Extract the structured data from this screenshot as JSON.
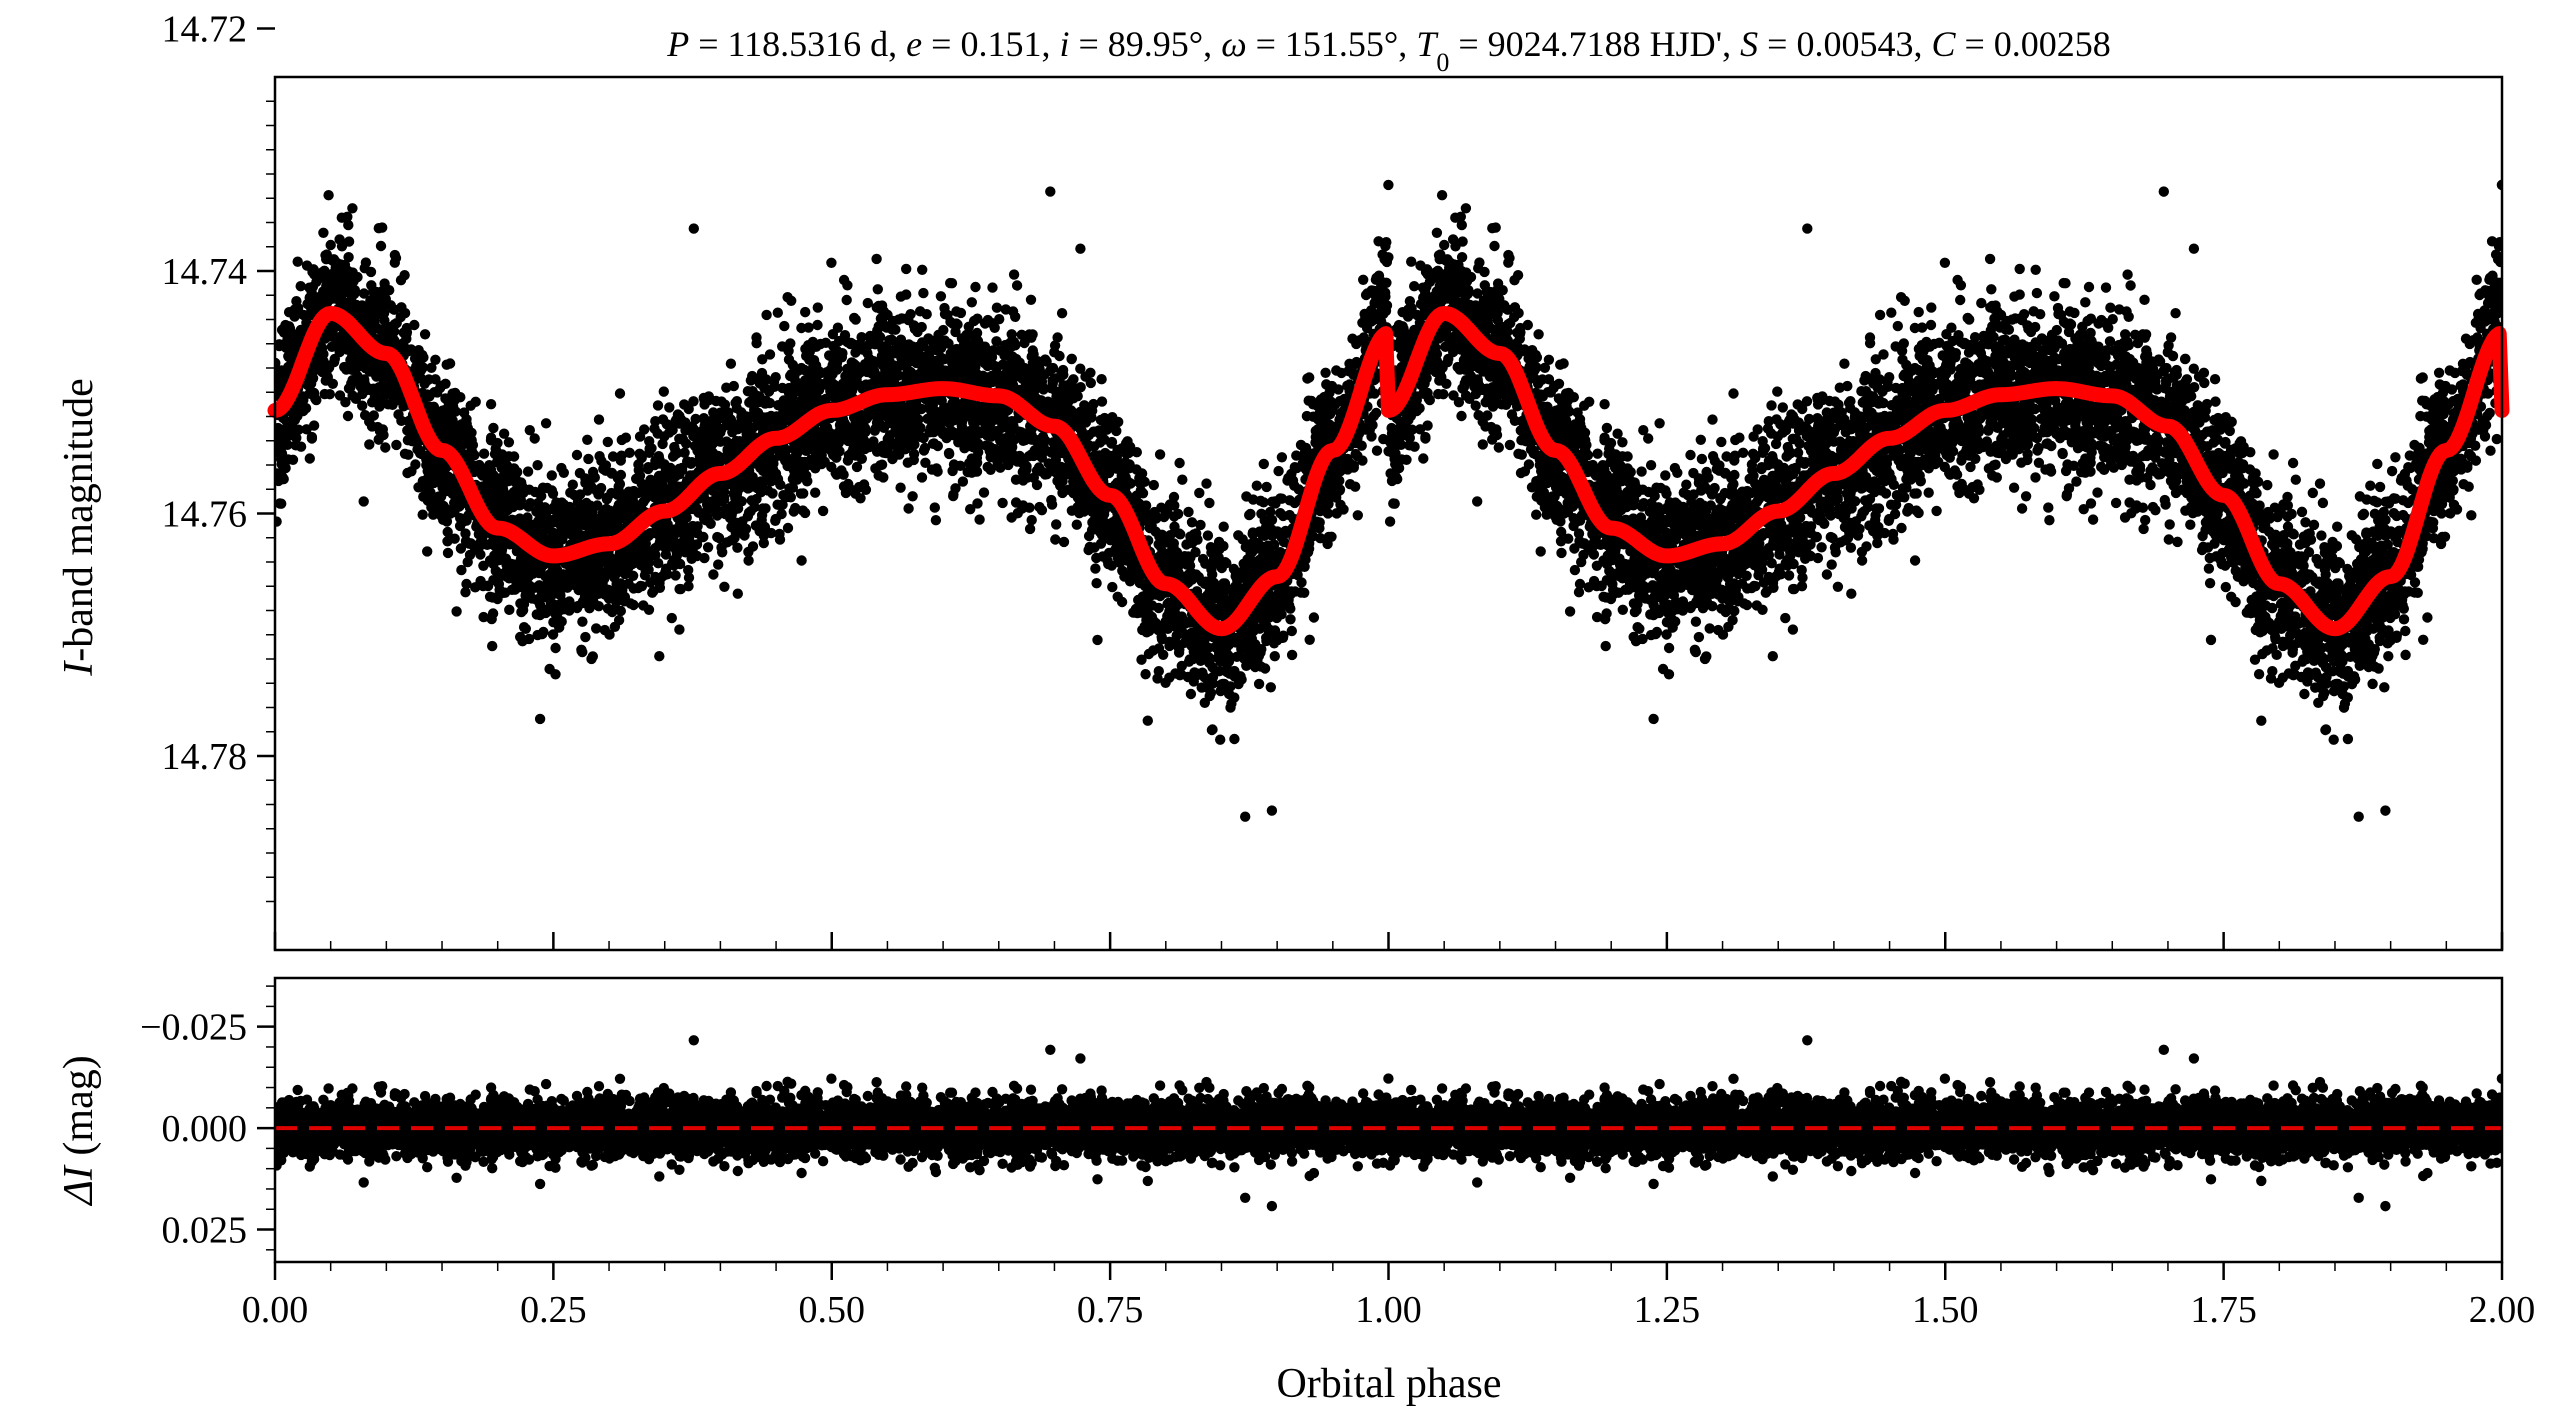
{
  "chart_data": [
    {
      "type": "scatter",
      "panel": "light-curve",
      "title": "P = 118.5316 d, e = 0.151, i = 89.95°, ω = 151.55°, T0 = 9024.7188 HJD', S = 0.00543, C = 0.00258",
      "title_parts": {
        "P_sym": "P",
        "P_val": " = 118.5316 d, ",
        "e_sym": "e",
        "e_val": " = 0.151, ",
        "i_sym": "i",
        "i_val": " = 89.95°, ",
        "w_sym": "ω",
        "w_val": " = 151.55°, ",
        "T_sym": "T",
        "T_sub": "0",
        "T_val": " = 9024.7188 HJD', ",
        "S_sym": "S",
        "S_val": " = 0.00543, ",
        "C_sym": "C",
        "C_val": " = 0.00258"
      },
      "ylabel_italic": "I",
      "ylabel_rest": "-band magnitude",
      "xlim": [
        0.0,
        2.0
      ],
      "ylim": [
        14.796,
        14.724
      ],
      "y_inverted": true,
      "yticks": [
        14.72,
        14.74,
        14.76,
        14.78
      ],
      "ytick_labels": [
        "14.72",
        "14.74",
        "14.76",
        "14.78"
      ],
      "xticks": [
        0.0,
        0.25,
        0.5,
        0.75,
        1.0,
        1.25,
        1.5,
        1.75,
        2.0
      ],
      "marker_color": "#000000",
      "model": {
        "name": "model",
        "color": "#ff0000",
        "phase": [
          0.0,
          0.05,
          0.1,
          0.15,
          0.2,
          0.25,
          0.3,
          0.35,
          0.4,
          0.45,
          0.5,
          0.55,
          0.6,
          0.65,
          0.7,
          0.75,
          0.8,
          0.85,
          0.9,
          0.95,
          1.0
        ],
        "mag": [
          14.7515,
          14.7435,
          14.7468,
          14.7548,
          14.7612,
          14.7635,
          14.7625,
          14.7598,
          14.7567,
          14.7538,
          14.7515,
          14.7502,
          14.7497,
          14.7503,
          14.7528,
          14.7585,
          14.7658,
          14.7695,
          14.7652,
          14.7548,
          14.7451
        ]
      },
      "scatter_sigma_mag": 0.0055,
      "n_points_per_cycle": 6000
    },
    {
      "type": "scatter",
      "panel": "residuals",
      "ylabel_sym": "ΔI",
      "ylabel_rest": " (mag)",
      "xlabel": "Orbital phase",
      "xlim": [
        0.0,
        2.0
      ],
      "ylim": [
        0.033,
        -0.037
      ],
      "y_inverted": true,
      "yticks": [
        -0.025,
        0.0,
        0.025
      ],
      "ytick_labels": [
        "−0.025",
        "0.000",
        "0.025"
      ],
      "xticks": [
        0.0,
        0.25,
        0.5,
        0.75,
        1.0,
        1.25,
        1.5,
        1.75,
        2.0
      ],
      "xtick_labels": [
        "0.00",
        "0.25",
        "0.50",
        "0.75",
        "1.00",
        "1.25",
        "1.50",
        "1.75",
        "2.00"
      ],
      "zero_line": {
        "value": 0.0,
        "color": "#e00000",
        "style": "dashed"
      },
      "marker_color": "#000000",
      "scatter_sigma_mag": 0.0055
    }
  ]
}
